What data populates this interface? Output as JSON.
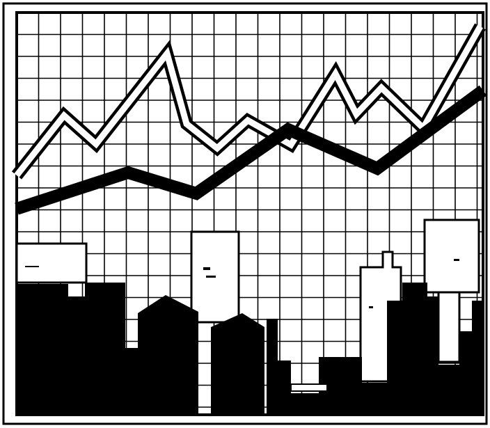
{
  "illustration": {
    "subject": "",
    "colors": {
      "ink": "#000000",
      "paper": "#ffffff"
    }
  }
}
